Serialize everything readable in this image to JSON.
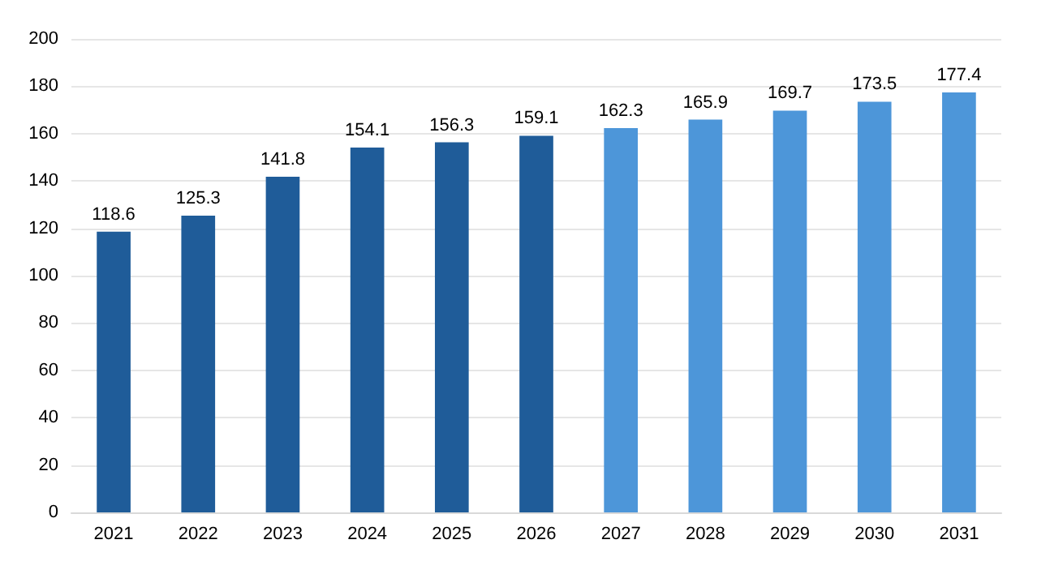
{
  "chart_data": {
    "type": "bar",
    "categories": [
      "2021",
      "2022",
      "2023",
      "2024",
      "2025",
      "2026",
      "2027",
      "2028",
      "2029",
      "2030",
      "2031"
    ],
    "values": [
      118.6,
      125.3,
      141.8,
      154.1,
      156.3,
      159.1,
      162.3,
      165.9,
      169.7,
      173.5,
      177.4
    ],
    "colors": [
      "#1f5c99",
      "#1f5c99",
      "#1f5c99",
      "#1f5c99",
      "#1f5c99",
      "#1f5c99",
      "#4d96d9",
      "#4d96d9",
      "#4d96d9",
      "#4d96d9",
      "#4d96d9"
    ],
    "ylim": [
      0,
      200
    ],
    "yticks": [
      0,
      20,
      40,
      60,
      80,
      100,
      120,
      140,
      160,
      180,
      200
    ],
    "grid": "y",
    "data_labels": true
  }
}
